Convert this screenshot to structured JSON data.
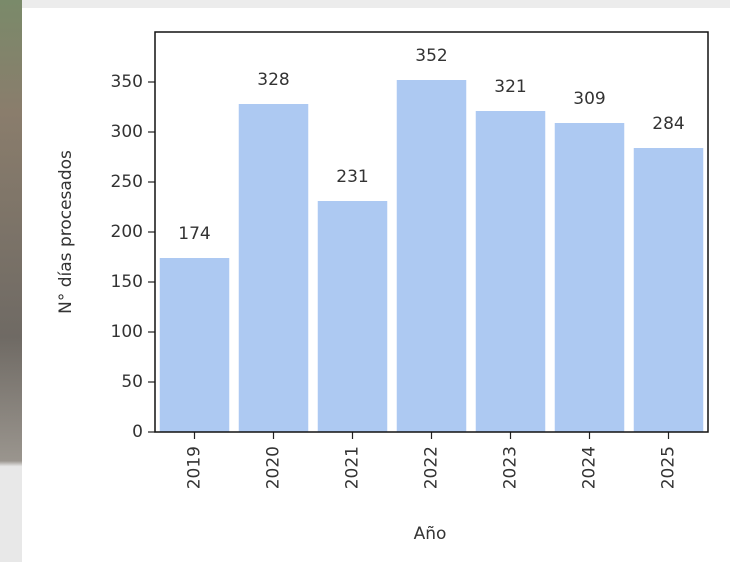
{
  "chart_data": {
    "type": "bar",
    "x_label": "Año",
    "y_label": "N° días procesados",
    "categories": [
      "2019",
      "2020",
      "2021",
      "2022",
      "2023",
      "2024",
      "2025"
    ],
    "values": [
      174,
      328,
      231,
      352,
      321,
      309,
      284
    ],
    "color": "#adc9f2",
    "ylim": [
      0,
      400
    ],
    "yticks": [
      0,
      50,
      100,
      150,
      200,
      250,
      300,
      350
    ],
    "grid": false
  }
}
